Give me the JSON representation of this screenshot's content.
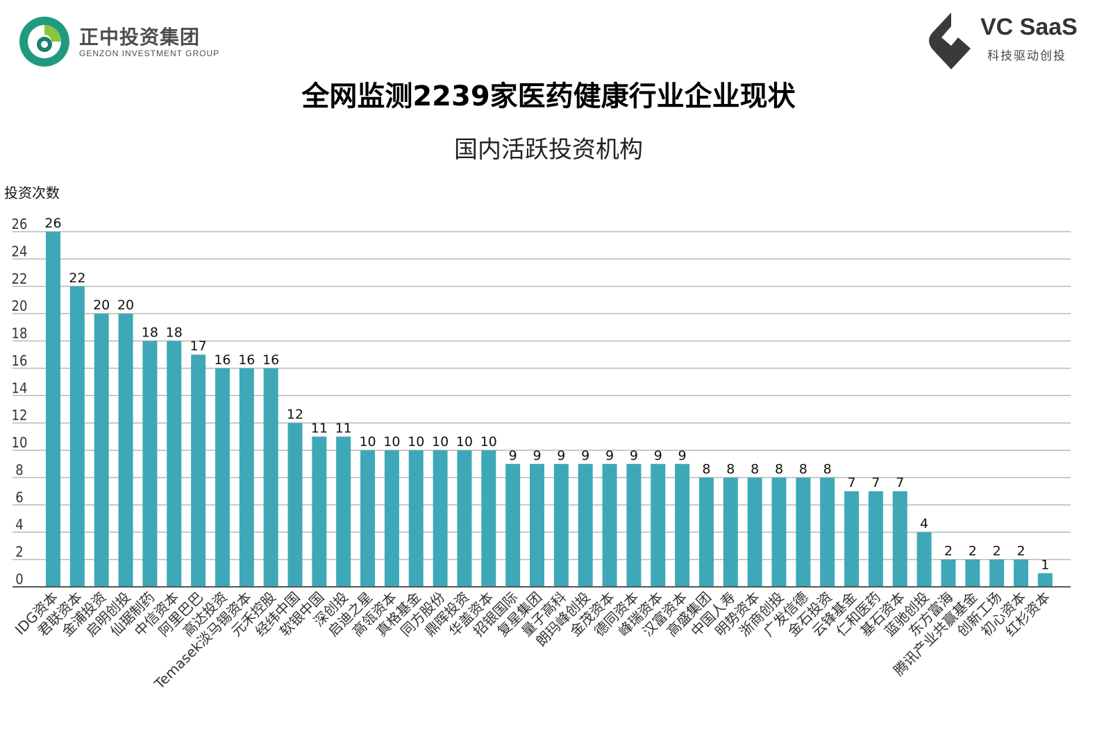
{
  "header": {
    "left_logo": {
      "name_cn": "正中投资集团",
      "name_en": "GENZON INVESTMENT GROUP",
      "icon": "genzon-logo-icon"
    },
    "right_logo": {
      "name_en": "VC SaaS",
      "tagline_cn": "科技驱动创投",
      "icon": "vcsaas-logo-icon"
    },
    "title": "全网监测2239家医药健康行业企业现状",
    "subtitle": "国内活跃投资机构"
  },
  "colors": {
    "bar": "#3ea8b8",
    "grid": "#b8b8b8",
    "axis": "#555555",
    "logo_green": "#1f9a7e",
    "logo_teal": "#17806f"
  },
  "chart_data": {
    "type": "bar",
    "title": "国内活跃投资机构",
    "ylabel": "投资次数",
    "xlabel": "",
    "ylim": [
      0,
      26
    ],
    "yticks": [
      0,
      2,
      4,
      6,
      8,
      10,
      12,
      14,
      16,
      18,
      20,
      22,
      24,
      26
    ],
    "grid": true,
    "legend": "none",
    "categories": [
      "IDG资本",
      "君联资本",
      "金浦投资",
      "启明创投",
      "仙琚制药",
      "中信资本",
      "阿里巴巴",
      "高达投资",
      "Temasek淡马锡资本",
      "元禾控股",
      "经纬中国",
      "软银中国",
      "深创投",
      "启迪之星",
      "高瓴资本",
      "真格基金",
      "同方股份",
      "鼎晖投资",
      "华盖资本",
      "招银国际",
      "复星集团",
      "量子高科",
      "朗玛峰创投",
      "金茂资本",
      "德同资本",
      "峰瑞资本",
      "汉富资本",
      "高盛集团",
      "中国人寿",
      "明势资本",
      "浙商创投",
      "广发信德",
      "金石投资",
      "云锋基金",
      "仁和医药",
      "基石资本",
      "蓝驰创投",
      "东方富海",
      "腾讯产业共赢基金",
      "创新工场",
      "初心资本",
      "红杉资本"
    ],
    "values": [
      26,
      22,
      20,
      20,
      18,
      18,
      17,
      16,
      16,
      16,
      12,
      11,
      11,
      10,
      10,
      10,
      10,
      10,
      10,
      9,
      9,
      9,
      9,
      9,
      9,
      9,
      9,
      8,
      8,
      8,
      8,
      8,
      8,
      7,
      7,
      7,
      4,
      2,
      2,
      2,
      2,
      1
    ]
  }
}
